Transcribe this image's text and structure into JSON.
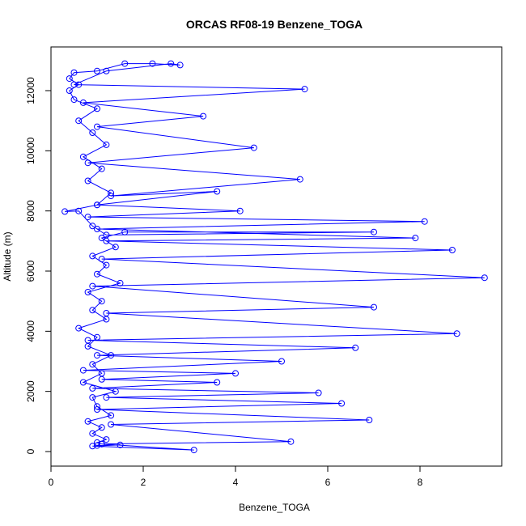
{
  "chart_data": {
    "type": "line",
    "title": "ORCAS RF08-19 Benzene_TOGA",
    "xlabel": "Benzene_TOGA",
    "ylabel": "Altitude (m)",
    "xlim": [
      0,
      9.4
    ],
    "ylim": [
      0,
      12900
    ],
    "x_ticks": [
      "0",
      "2",
      "4",
      "6",
      "8"
    ],
    "y_ticks": [
      "0",
      "2000",
      "4000",
      "6000",
      "8000",
      "10000",
      "12000"
    ],
    "grid": false,
    "legend": "none",
    "color": "#0000ff",
    "series": [
      {
        "points": [
          [
            1.1,
            250
          ],
          [
            1.0,
            300
          ],
          [
            1.2,
            400
          ],
          [
            0.9,
            600
          ],
          [
            1.1,
            800
          ],
          [
            0.8,
            1000
          ],
          [
            1.3,
            1200
          ],
          [
            1.0,
            1500
          ],
          [
            0.9,
            1800
          ],
          [
            1.4,
            2000
          ],
          [
            0.7,
            2300
          ],
          [
            1.1,
            2600
          ],
          [
            0.9,
            2900
          ],
          [
            1.3,
            3200
          ],
          [
            0.8,
            3500
          ],
          [
            1.0,
            3800
          ],
          [
            0.6,
            4100
          ],
          [
            1.2,
            4400
          ],
          [
            0.9,
            4700
          ],
          [
            1.1,
            5000
          ],
          [
            0.8,
            5300
          ],
          [
            1.5,
            5600
          ],
          [
            1.0,
            5900
          ],
          [
            1.2,
            6200
          ],
          [
            0.9,
            6500
          ],
          [
            1.4,
            6800
          ],
          [
            1.1,
            7100
          ],
          [
            1.6,
            7300
          ],
          [
            7.0,
            7300
          ],
          [
            1.2,
            7200
          ],
          [
            0.9,
            7500
          ],
          [
            0.6,
            8000
          ],
          [
            0.3,
            7980
          ],
          [
            1.0,
            8200
          ],
          [
            1.3,
            8600
          ],
          [
            0.8,
            9000
          ],
          [
            1.1,
            9400
          ],
          [
            0.7,
            9800
          ],
          [
            1.2,
            10200
          ],
          [
            0.9,
            10600
          ],
          [
            0.6,
            11000
          ],
          [
            1.0,
            11400
          ],
          [
            0.5,
            11700
          ],
          [
            0.4,
            12000
          ],
          [
            0.6,
            12200
          ],
          [
            0.4,
            12400
          ],
          [
            0.5,
            12600
          ],
          [
            1.0,
            12650
          ],
          [
            1.6,
            12900
          ],
          [
            2.2,
            12900
          ],
          [
            2.8,
            12850
          ],
          [
            2.6,
            12900
          ],
          [
            1.2,
            12650
          ],
          [
            0.5,
            12200
          ],
          [
            5.5,
            12050
          ],
          [
            0.7,
            11600
          ],
          [
            3.3,
            11150
          ],
          [
            1.0,
            10800
          ],
          [
            4.4,
            10100
          ],
          [
            0.8,
            9600
          ],
          [
            5.4,
            9050
          ],
          [
            1.3,
            8500
          ],
          [
            3.6,
            8650
          ],
          [
            1.0,
            8200
          ],
          [
            4.1,
            8000
          ],
          [
            0.8,
            7800
          ],
          [
            8.1,
            7650
          ],
          [
            1.0,
            7400
          ],
          [
            7.9,
            7100
          ],
          [
            1.2,
            7000
          ],
          [
            8.7,
            6700
          ],
          [
            1.1,
            6400
          ],
          [
            9.4,
            5780
          ],
          [
            0.9,
            5500
          ],
          [
            7.0,
            4800
          ],
          [
            1.2,
            4600
          ],
          [
            8.8,
            3920
          ],
          [
            0.8,
            3700
          ],
          [
            6.6,
            3450
          ],
          [
            1.0,
            3200
          ],
          [
            5.0,
            3000
          ],
          [
            0.7,
            2700
          ],
          [
            4.0,
            2600
          ],
          [
            1.1,
            2400
          ],
          [
            3.6,
            2300
          ],
          [
            0.9,
            2100
          ],
          [
            5.8,
            1950
          ],
          [
            1.2,
            1800
          ],
          [
            6.3,
            1600
          ],
          [
            1.0,
            1400
          ],
          [
            6.9,
            1050
          ],
          [
            1.3,
            900
          ],
          [
            5.2,
            330
          ],
          [
            1.1,
            250
          ],
          [
            3.1,
            50
          ],
          [
            0.9,
            180
          ],
          [
            1.5,
            220
          ],
          [
            1.0,
            200
          ]
        ]
      }
    ]
  }
}
